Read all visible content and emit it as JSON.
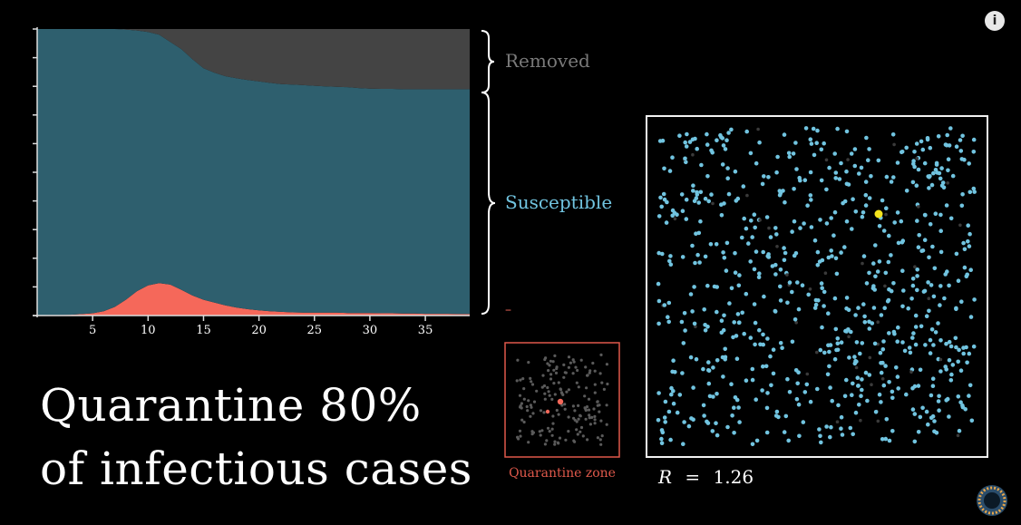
{
  "headline": {
    "line1": "Quarantine 80%",
    "line2": "of infectious cases"
  },
  "legend": {
    "removed": "Removed",
    "susceptible": "Susceptible",
    "infectious": "–"
  },
  "simulation": {
    "r_symbol": "R",
    "r_equals": "=",
    "r_value": "1.26",
    "quarantine_label": "Quarantine zone"
  },
  "colors": {
    "background": "#000000",
    "susceptible": "#2e5f6e",
    "infectious": "#f5685a",
    "removed": "#444444",
    "dot": "#71c4e0",
    "highlight_dot": "#f4e41c",
    "quarantine": "#e0594b",
    "legend_removed": "#7a7a7a",
    "legend_susceptible": "#71c4e0"
  },
  "icons": {
    "info": "info-icon",
    "channel_logo": "pi-creature-logo"
  },
  "chart_data": {
    "type": "area",
    "stacked": true,
    "normalized": true,
    "x": [
      0,
      1,
      2,
      3,
      4,
      5,
      6,
      7,
      8,
      9,
      10,
      11,
      12,
      13,
      14,
      15,
      16,
      17,
      18,
      19,
      20,
      21,
      22,
      23,
      24,
      25,
      26,
      27,
      28,
      29,
      30,
      31,
      32,
      33,
      34,
      35,
      36,
      37,
      38,
      39
    ],
    "xticks": [
      5,
      10,
      15,
      20,
      25,
      30,
      35
    ],
    "xlim": [
      0,
      39
    ],
    "ylim": [
      0,
      1
    ],
    "grid": false,
    "series": [
      {
        "name": "–",
        "key": "infectious",
        "values": [
          0.001,
          0.002,
          0.002,
          0.003,
          0.005,
          0.008,
          0.015,
          0.03,
          0.055,
          0.085,
          0.105,
          0.113,
          0.108,
          0.09,
          0.07,
          0.055,
          0.045,
          0.035,
          0.028,
          0.022,
          0.018,
          0.015,
          0.013,
          0.011,
          0.01,
          0.01,
          0.01,
          0.01,
          0.009,
          0.009,
          0.009,
          0.008,
          0.008,
          0.007,
          0.007,
          0.006,
          0.006,
          0.006,
          0.005,
          0.005
        ]
      },
      {
        "name": "Susceptible",
        "key": "susceptible",
        "values": [
          0.999,
          0.998,
          0.998,
          0.997,
          0.995,
          0.992,
          0.985,
          0.97,
          0.943,
          0.91,
          0.885,
          0.867,
          0.847,
          0.84,
          0.825,
          0.808,
          0.802,
          0.8,
          0.8,
          0.8,
          0.799,
          0.797,
          0.795,
          0.795,
          0.794,
          0.792,
          0.79,
          0.788,
          0.788,
          0.785,
          0.783,
          0.783,
          0.783,
          0.783,
          0.783,
          0.784,
          0.784,
          0.784,
          0.785,
          0.785
        ]
      },
      {
        "name": "Removed",
        "key": "removed",
        "values": [
          0,
          0,
          0,
          0,
          0,
          0,
          0,
          0,
          0.002,
          0.005,
          0.01,
          0.02,
          0.045,
          0.07,
          0.105,
          0.137,
          0.153,
          0.165,
          0.172,
          0.178,
          0.183,
          0.188,
          0.192,
          0.194,
          0.196,
          0.198,
          0.2,
          0.202,
          0.203,
          0.206,
          0.208,
          0.209,
          0.209,
          0.21,
          0.21,
          0.21,
          0.21,
          0.21,
          0.21,
          0.21
        ]
      }
    ]
  }
}
